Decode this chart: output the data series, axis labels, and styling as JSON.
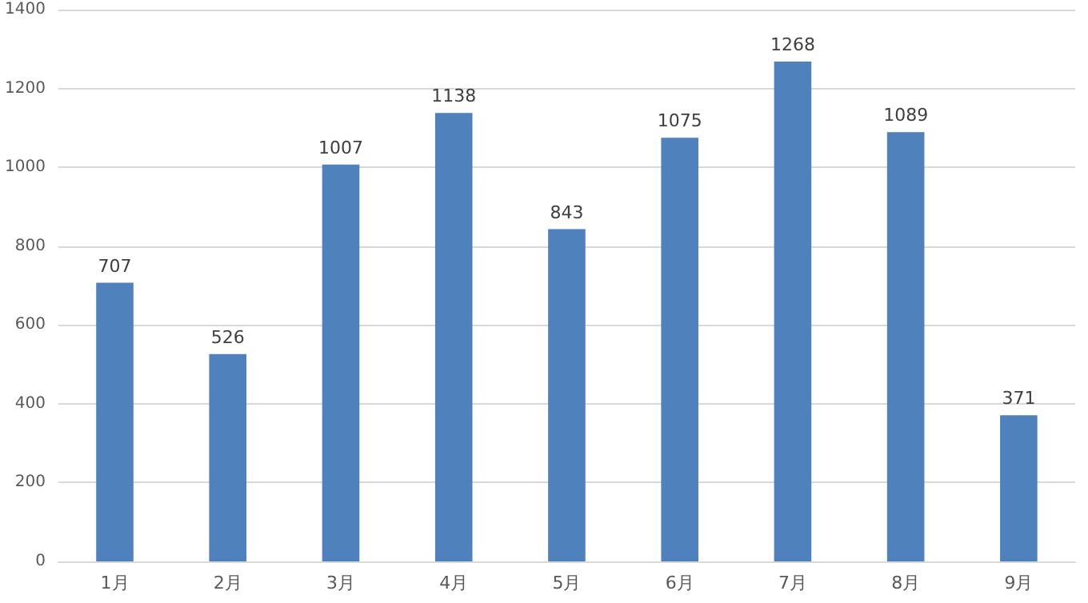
{
  "chart_data": {
    "type": "bar",
    "categories": [
      "1月",
      "2月",
      "3月",
      "4月",
      "5月",
      "6月",
      "7月",
      "8月",
      "9月"
    ],
    "values": [
      707,
      526,
      1007,
      1138,
      843,
      1075,
      1268,
      1089,
      371
    ],
    "color": "#4f81bd",
    "ylim": [
      0,
      1400
    ],
    "yticks": [
      0,
      200,
      400,
      600,
      800,
      1000,
      1200,
      1400
    ],
    "grid": "y",
    "data_labels": true
  }
}
